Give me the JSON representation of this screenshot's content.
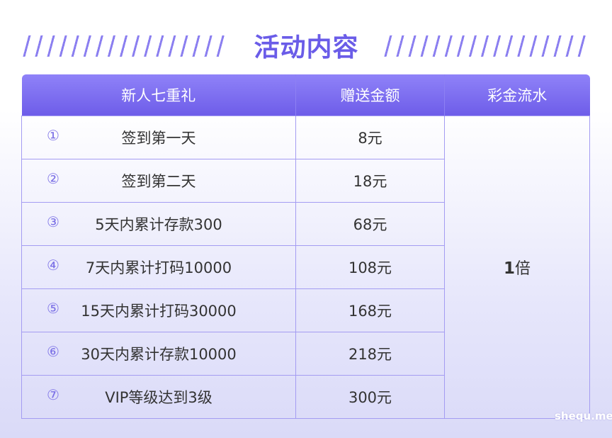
{
  "title": "活动内容",
  "table": {
    "headers": [
      "新人七重礼",
      "赠送金额",
      "彩金流水"
    ],
    "rows": [
      {
        "num": "①",
        "condition": "签到第一天",
        "amount": "8元"
      },
      {
        "num": "②",
        "condition": "签到第二天",
        "amount": "18元"
      },
      {
        "num": "③",
        "condition": "5天内累计存款300",
        "amount": "68元"
      },
      {
        "num": "④",
        "condition": "7天内累计打码10000",
        "amount": "108元"
      },
      {
        "num": "⑤",
        "condition": "15天内累计打码30000",
        "amount": "168元"
      },
      {
        "num": "⑥",
        "condition": "30天内累计存款10000",
        "amount": "218元"
      },
      {
        "num": "⑦",
        "condition": "VIP等级达到3级",
        "amount": "300元"
      }
    ],
    "turnover_value": "1",
    "turnover_unit": "倍"
  },
  "watermark": "shequ.me",
  "colors": {
    "accent": "#6a5ce8",
    "header_top": "#8f82f8",
    "header_bottom": "#6e5de9",
    "border": "#a49cf2"
  }
}
